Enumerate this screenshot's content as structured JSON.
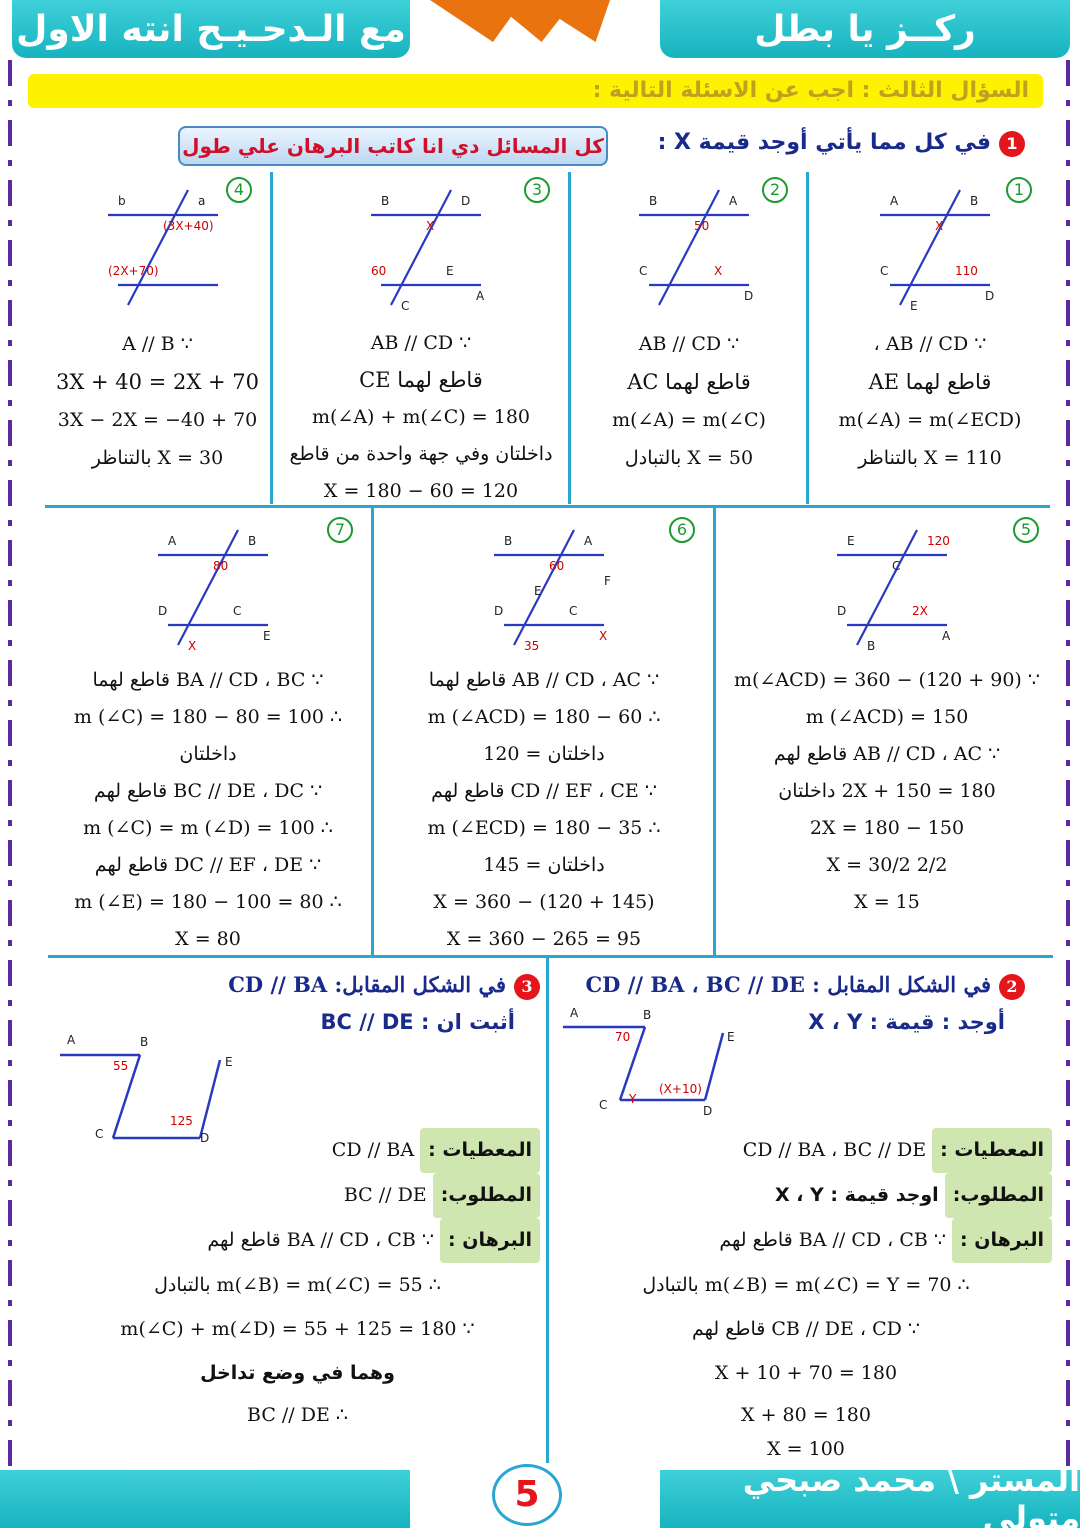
{
  "header": {
    "left_title": "مع الـدحـيـح انته الاول",
    "right_title": "ركــز يا بطل"
  },
  "banner": "السؤال الثالث : اجب عن الاسئلة التالية :",
  "q1": {
    "number": "1",
    "title": "في كل مما يأتي أوجد قيمة X :",
    "note": "كل المسائل دي انا كاتب البرهان علي طول"
  },
  "problems": [
    {
      "n": "1",
      "labels": [
        "A",
        "B",
        "X",
        "C",
        "110",
        "D",
        "E"
      ],
      "lines": [
        "∵ AB // CD ،",
        "قاطع لهما AE",
        "m(∠A) = m(∠ECD)",
        "X = 110 بالتناظر"
      ]
    },
    {
      "n": "2",
      "labels": [
        "B",
        "A",
        "50",
        "C",
        "X",
        "D"
      ],
      "lines": [
        "∵ AB // CD",
        "قاطع لهما AC",
        "m(∠A) = m(∠C)",
        "X = 50 بالتبادل"
      ]
    },
    {
      "n": "3",
      "labels": [
        "B",
        "D",
        "X",
        "60",
        "E",
        "A",
        "C"
      ],
      "lines": [
        "∵ AB // CD",
        "قاطع لهما CE",
        "m(∠A) + m(∠C) = 180",
        "داخلتان وفي جهة واحدة من قاطع",
        "X = 180 − 60 = 120"
      ]
    },
    {
      "n": "4",
      "labels": [
        "b",
        "a",
        "(3X+40)",
        "(2X+70)"
      ],
      "lines": [
        "∵ A // B",
        "3X + 40 = 2X + 70",
        "3X − 2X = −40 + 70",
        "X = 30 بالتناظر"
      ]
    },
    {
      "n": "5",
      "labels": [
        "E",
        "120",
        "C",
        "D",
        "2X",
        "A",
        "B"
      ],
      "lines": [
        "∵ m(∠ACD) = 360 − (120 + 90)",
        "m (∠ACD) = 150",
        "∵ AB // CD ، AC قاطع لهم",
        "2X + 150 = 180 داخلتان",
        "2X = 180 − 150",
        "2/2 X = 30/2",
        "X = 15"
      ]
    },
    {
      "n": "6",
      "labels": [
        "B",
        "A",
        "60",
        "D",
        "C",
        "X",
        "35",
        "E",
        "F"
      ],
      "lines": [
        "∵ AB // CD ، AC قاطع لهما",
        "∴ m (∠ACD) = 180 − 60",
        "داخلتان = 120",
        "∵ CD // EF ، CE قاطع لهم",
        "∴ m (∠ECD) = 180 − 35",
        "داخلتان = 145",
        "X = 360 − (120 + 145)",
        "X = 360 − 265 = 95"
      ]
    },
    {
      "n": "7",
      "labels": [
        "A",
        "B",
        "80",
        "D",
        "C",
        "E",
        "X"
      ],
      "lines": [
        "∵ BA // CD ، BC قاطع لهما",
        "∴ m (∠C) = 180 − 80 = 100",
        "داخلتان",
        "∵ BC // DE ، DC قاطع لهم",
        "∴ m (∠C) = m (∠D) = 100",
        "∵ DC // EF ، DE قاطع لهم",
        "∴ m (∠E) = 180 − 100 = 80",
        "X = 80"
      ]
    }
  ],
  "q2": {
    "n": "2",
    "title": "في الشكل المقابل : CD // BA ، BC // DE",
    "subtitle": "أوجد : قيمة : X ، Y",
    "labels": [
      "A",
      "B",
      "70",
      "E",
      "C",
      "Y",
      "(X+10)",
      "D"
    ],
    "given_label": "المعطيات :",
    "given": "CD // BA ، BC // DE",
    "req_label": "المطلوب:",
    "req": "اوجد قيمة : X ، Y",
    "proof_label": "البرهان :",
    "proof": [
      "∵ BA // CD ، CB قاطع لهم",
      "∴ m(∠B) = m(∠C) = Y = 70 بالتبادل",
      "∵ CB // DE ، CD قاطع لهم",
      "X + 10 + 70 = 180",
      "X + 80 = 180",
      "X = 100"
    ]
  },
  "q3": {
    "n": "3",
    "title": "في الشكل المقابل: CD // BA",
    "subtitle": "أثبت ان : BC // DE",
    "labels": [
      "A",
      "B",
      "55",
      "E",
      "C",
      "125",
      "D"
    ],
    "given_label": "المعطيات :",
    "given": "CD // BA",
    "req_label": "المطلوب:",
    "req": "BC // DE",
    "proof_label": "البرهان :",
    "proof": [
      "∵ BA // CD ، CB قاطع لهم",
      "∴ m(∠B) = m(∠C) = 55 بالتبادل",
      "∵ m(∠C) + m(∠D) = 55 + 125 = 180",
      "وهما في وضع تداخل",
      "∴ BC // DE"
    ]
  },
  "footer": {
    "author": "المستر \\ محمد صبحي متولي",
    "page": "5"
  }
}
